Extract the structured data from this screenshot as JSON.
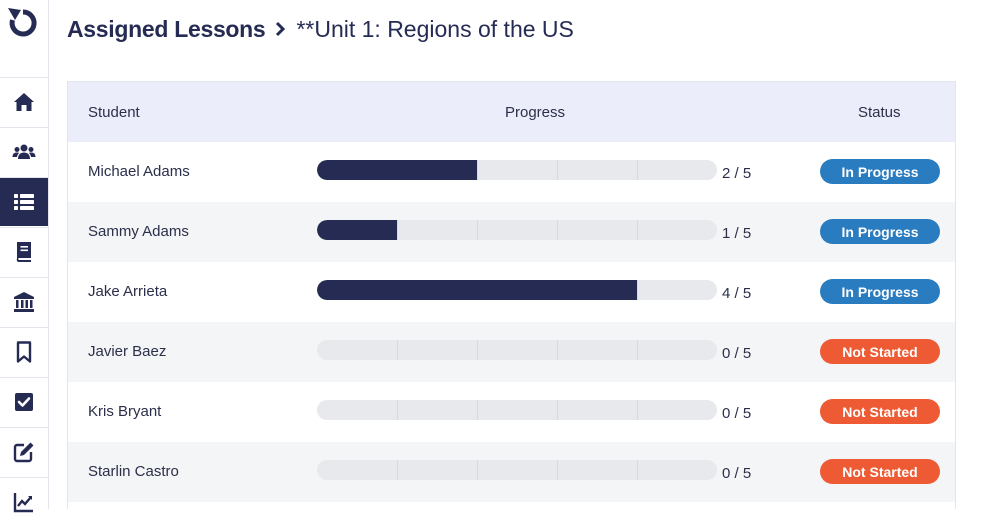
{
  "colors": {
    "navy": "#262b54",
    "in_progress": "#2a7cc0",
    "not_started": "#ee5a34",
    "header_bg": "#ebeefa",
    "alt_row": "#f4f5f6"
  },
  "sidebar": {
    "items": [
      {
        "icon": "home-icon"
      },
      {
        "icon": "users-icon"
      },
      {
        "icon": "list-icon",
        "active": true
      },
      {
        "icon": "book-icon"
      },
      {
        "icon": "bank-icon"
      },
      {
        "icon": "bookmark-icon"
      },
      {
        "icon": "checkbox-icon"
      },
      {
        "icon": "edit-icon"
      },
      {
        "icon": "chart-icon"
      }
    ]
  },
  "header": {
    "title": "Assigned Lessons",
    "subtitle": "**Unit 1: Regions of the US"
  },
  "table": {
    "columns": {
      "student": "Student",
      "progress": "Progress",
      "status": "Status"
    },
    "rows": [
      {
        "name": "Michael Adams",
        "done": 2,
        "total": 5,
        "count_label": "2 / 5",
        "status": "In Progress",
        "status_type": "inprogress"
      },
      {
        "name": "Sammy Adams",
        "done": 1,
        "total": 5,
        "count_label": "1 / 5",
        "status": "In Progress",
        "status_type": "inprogress"
      },
      {
        "name": "Jake Arrieta",
        "done": 4,
        "total": 5,
        "count_label": "4 / 5",
        "status": "In Progress",
        "status_type": "inprogress"
      },
      {
        "name": "Javier Baez",
        "done": 0,
        "total": 5,
        "count_label": "0 / 5",
        "status": "Not Started",
        "status_type": "notstarted"
      },
      {
        "name": "Kris Bryant",
        "done": 0,
        "total": 5,
        "count_label": "0 / 5",
        "status": "Not Started",
        "status_type": "notstarted"
      },
      {
        "name": "Starlin Castro",
        "done": 0,
        "total": 5,
        "count_label": "0 / 5",
        "status": "Not Started",
        "status_type": "notstarted"
      }
    ]
  }
}
